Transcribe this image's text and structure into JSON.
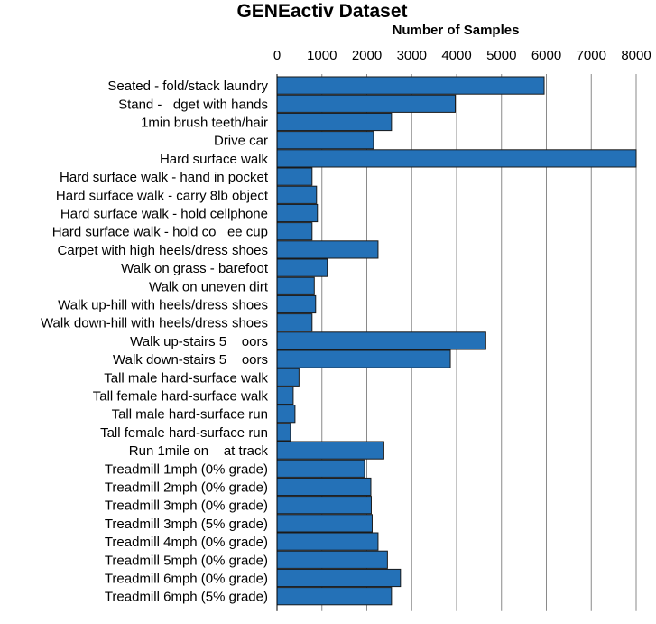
{
  "chart_data": {
    "type": "bar",
    "orientation": "horizontal",
    "title": "GENEactiv Dataset",
    "xlabel": "Number of Samples",
    "ylabel": "",
    "xlim": [
      0,
      8000
    ],
    "xticks": [
      "0",
      "1000",
      "2000",
      "3000",
      "4000",
      "5000",
      "6000",
      "7000",
      "8000"
    ],
    "grid": "vertical",
    "axis_position": "top",
    "bar_color": "#2471b7",
    "categories": [
      "Seated - fold/stack laundry",
      "Stand -   dget with hands",
      "1min brush teeth/hair",
      "Drive car",
      "Hard surface walk",
      "Hard surface walk - hand in pocket",
      "Hard surface walk - carry 8lb object",
      "Hard surface walk - hold cellphone",
      "Hard surface walk - hold co   ee cup",
      "Carpet with high heels/dress shoes",
      "Walk on grass - barefoot",
      "Walk on uneven dirt",
      "Walk up-hill with heels/dress shoes",
      "Walk down-hill with heels/dress shoes",
      "Walk up-stairs 5    oors",
      "Walk down-stairs 5    oors",
      "Tall male hard-surface walk",
      "Tall female hard-surface walk",
      "Tall male hard-surface run",
      "Tall female hard-surface run",
      "Run 1mile on    at track",
      "Treadmill 1mph (0% grade)",
      "Treadmill 2mph (0% grade)",
      "Treadmill 3mph (0% grade)",
      "Treadmill 3mph (5% grade)",
      "Treadmill 4mph (0% grade)",
      "Treadmill 5mph (0% grade)",
      "Treadmill 6mph (0% grade)",
      "Treadmill 6mph (5% grade)"
    ],
    "values": [
      5950,
      3970,
      2550,
      2150,
      8000,
      780,
      880,
      900,
      780,
      2250,
      1120,
      830,
      860,
      780,
      4650,
      3860,
      490,
      360,
      400,
      300,
      2380,
      1950,
      2090,
      2100,
      2120,
      2250,
      2460,
      2750,
      2550
    ]
  }
}
